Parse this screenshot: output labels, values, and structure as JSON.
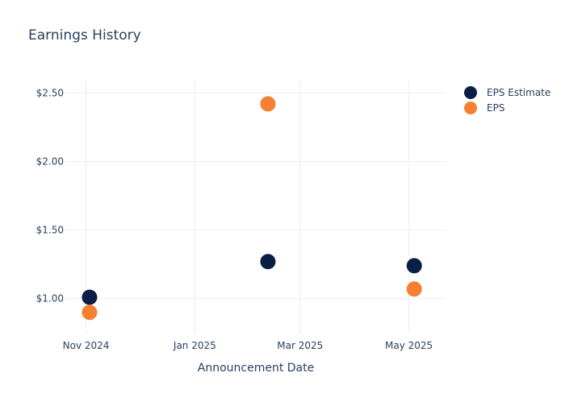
{
  "chart_data": {
    "type": "scatter",
    "title": "Earnings History",
    "xlabel": "Announcement Date",
    "ylabel": "",
    "x_axis": {
      "type": "date",
      "ticks": [
        "2024-11-01",
        "2025-01-01",
        "2025-03-01",
        "2025-05-01"
      ],
      "tick_labels": [
        "Nov 2024",
        "Jan 2025",
        "Mar 2025",
        "May 2025"
      ],
      "range": [
        "2024-10-20",
        "2025-05-22"
      ]
    },
    "y_axis": {
      "ticks": [
        1.0,
        1.5,
        2.0,
        2.5
      ],
      "tick_labels": [
        "$1.00",
        "$1.50",
        "$2.00",
        "$2.50"
      ],
      "range": [
        0.74,
        2.59
      ]
    },
    "grid": true,
    "legend_position": "top-right",
    "series": [
      {
        "name": "EPS Estimate",
        "color": "#0b1f44",
        "points": [
          {
            "x": "2024-11-03",
            "y": 1.01
          },
          {
            "x": "2025-02-11",
            "y": 1.27
          },
          {
            "x": "2025-05-04",
            "y": 1.24
          }
        ]
      },
      {
        "name": "EPS",
        "color": "#f58032",
        "points": [
          {
            "x": "2024-11-03",
            "y": 0.9
          },
          {
            "x": "2025-02-11",
            "y": 2.42
          },
          {
            "x": "2025-05-04",
            "y": 1.07
          }
        ]
      }
    ]
  }
}
